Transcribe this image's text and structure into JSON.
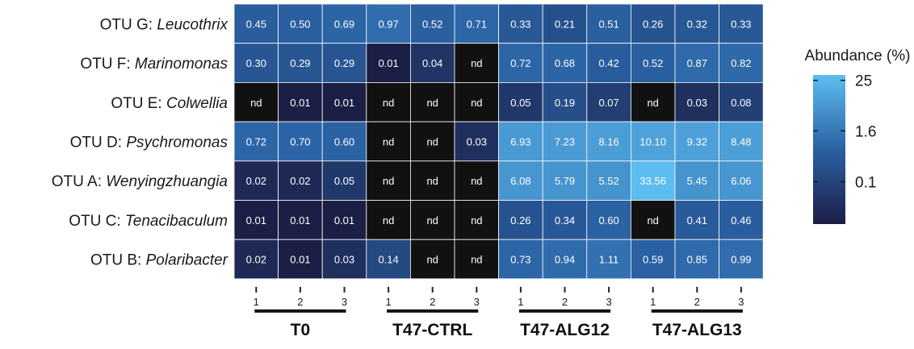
{
  "chart_data": {
    "type": "heatmap",
    "rows": [
      {
        "prefix": "OTU G: ",
        "genus": "Leucothrix"
      },
      {
        "prefix": "OTU F: ",
        "genus": "Marinomonas"
      },
      {
        "prefix": "OTU E: ",
        "genus": "Colwellia"
      },
      {
        "prefix": "OTU D: ",
        "genus": "Psychromonas"
      },
      {
        "prefix": "OTU A: ",
        "genus": "Wenyingzhuangia"
      },
      {
        "prefix": "OTU C: ",
        "genus": "Tenacibaculum"
      },
      {
        "prefix": "OTU B: ",
        "genus": "Polaribacter"
      }
    ],
    "columns": [
      "1",
      "2",
      "3",
      "1",
      "2",
      "3",
      "1",
      "2",
      "3",
      "1",
      "2",
      "3"
    ],
    "groups": [
      {
        "name": "T0",
        "columns": [
          0,
          1,
          2
        ]
      },
      {
        "name": "T47-CTRL",
        "columns": [
          3,
          4,
          5
        ]
      },
      {
        "name": "T47-ALG12",
        "columns": [
          6,
          7,
          8
        ]
      },
      {
        "name": "T47-ALG13",
        "columns": [
          9,
          10,
          11
        ]
      }
    ],
    "values": [
      [
        "0.45",
        "0.50",
        "0.69",
        "0.97",
        "0.52",
        "0.71",
        "0.33",
        "0.21",
        "0.51",
        "0.26",
        "0.32",
        "0.33"
      ],
      [
        "0.30",
        "0.29",
        "0.29",
        "0.01",
        "0.04",
        "nd",
        "0.72",
        "0.68",
        "0.42",
        "0.52",
        "0.87",
        "0.82"
      ],
      [
        "nd",
        "0.01",
        "0.01",
        "nd",
        "nd",
        "nd",
        "0.05",
        "0.19",
        "0.07",
        "nd",
        "0.03",
        "0.08"
      ],
      [
        "0.72",
        "0.70",
        "0.60",
        "nd",
        "nd",
        "0.03",
        "6.93",
        "7.23",
        "8.16",
        "10.10",
        "9.32",
        "8.48"
      ],
      [
        "0.02",
        "0.02",
        "0.05",
        "nd",
        "nd",
        "nd",
        "6.08",
        "5.79",
        "5.52",
        "33.56",
        "5.45",
        "6.06"
      ],
      [
        "0.01",
        "0.01",
        "0.01",
        "nd",
        "nd",
        "nd",
        "0.26",
        "0.34",
        "0.60",
        "nd",
        "0.41",
        "0.46"
      ],
      [
        "0.02",
        "0.01",
        "0.03",
        "0.14",
        "nd",
        "nd",
        "0.73",
        "0.94",
        "1.11",
        "0.59",
        "0.85",
        "0.99"
      ]
    ],
    "missing_label": "nd",
    "colorbar": {
      "title": "Abundance (%)",
      "ticks": [
        "25",
        "1.6",
        "0.1"
      ],
      "tick_values": [
        25,
        1.6,
        0.1
      ],
      "scale": "log",
      "range": [
        0.01,
        33.56
      ],
      "low_color": "#1b1e45",
      "mid_color": "#2a61a3",
      "high_color": "#5dbdf0",
      "missing_color": "#111111"
    }
  }
}
